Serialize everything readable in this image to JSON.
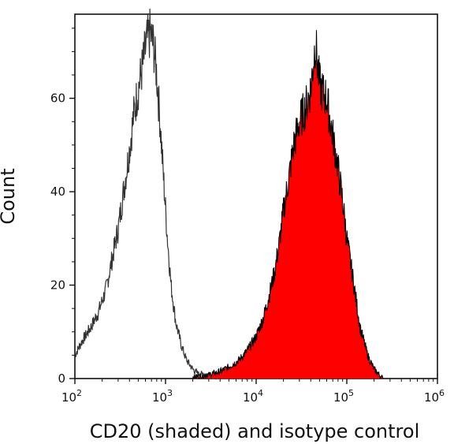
{
  "chart_data": {
    "type": "area",
    "title": "",
    "xlabel": "CD20 (shaded) and isotype control",
    "ylabel": "Count",
    "x_scale": "log",
    "xlim": [
      100,
      1000000
    ],
    "ylim": [
      0,
      78
    ],
    "grid": false,
    "x_ticks": [
      {
        "base": "10",
        "exp": "2",
        "value": 100
      },
      {
        "base": "10",
        "exp": "3",
        "value": 1000
      },
      {
        "base": "10",
        "exp": "4",
        "value": 10000
      },
      {
        "base": "10",
        "exp": "5",
        "value": 100000
      },
      {
        "base": "10",
        "exp": "6",
        "value": 1000000
      }
    ],
    "y_ticks": [
      {
        "label": "0",
        "value": 0
      },
      {
        "label": "20",
        "value": 20
      },
      {
        "label": "40",
        "value": 40
      },
      {
        "label": "60",
        "value": 60
      }
    ],
    "series": [
      {
        "style": "outline",
        "color": "#333333",
        "x": [
          100,
          120,
          150,
          180,
          220,
          260,
          300,
          350,
          400,
          450,
          500,
          560,
          620,
          680,
          740,
          800,
          870,
          950,
          1050,
          1150,
          1300,
          1500,
          1700,
          2000,
          2300,
          2700,
          3200,
          4000,
          5000,
          7000,
          10000
        ],
        "values": [
          5,
          8,
          11,
          14,
          19,
          26,
          32,
          41,
          49,
          57,
          62,
          67,
          72,
          74,
          71,
          65,
          55,
          43,
          30,
          20,
          12,
          7,
          4,
          2,
          1,
          1,
          0.5,
          0.3,
          0.2,
          0.1,
          0
        ]
      },
      {
        "style": "filled",
        "color": "#ff0000",
        "x": [
          2000,
          3000,
          4000,
          5000,
          6500,
          8000,
          10000,
          12000,
          14000,
          16000,
          18000,
          20000,
          23000,
          26000,
          30000,
          35000,
          40000,
          45000,
          50000,
          55000,
          60000,
          70000,
          80000,
          90000,
          100000,
          120000,
          140000,
          170000,
          200000,
          250000
        ],
        "values": [
          0.3,
          0.8,
          1.5,
          2.5,
          4,
          6,
          9,
          13,
          18,
          23,
          29,
          36,
          43,
          50,
          55,
          58,
          62,
          72,
          63,
          61,
          60,
          52,
          45,
          38,
          30,
          20,
          11,
          5,
          2,
          0
        ]
      }
    ]
  }
}
